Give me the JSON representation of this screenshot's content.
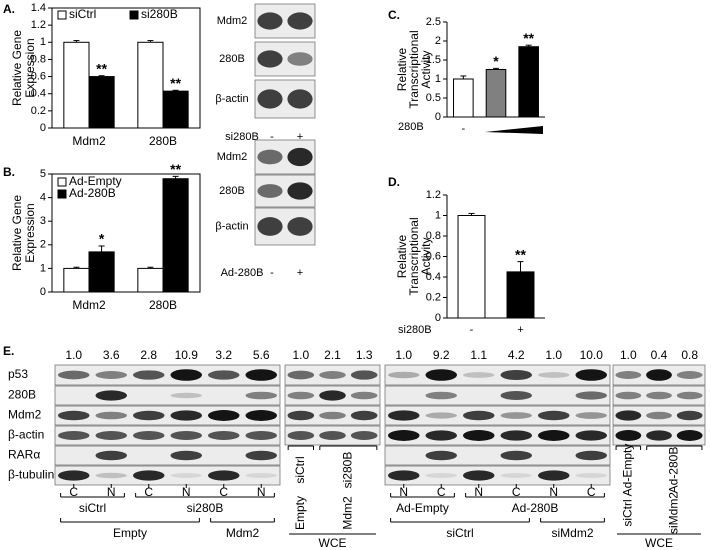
{
  "chart_data": [
    {
      "type": "bar",
      "label": "A.",
      "ylabel": [
        "Relative Gene",
        "Expression"
      ],
      "categories": [
        "Mdm2",
        "280B"
      ],
      "series": [
        {
          "name": "siCtrl",
          "color": "#ffffff",
          "values": [
            1,
            1
          ],
          "errors": [
            0.02,
            0.02
          ],
          "marks": [
            null,
            null
          ]
        },
        {
          "name": "si280B",
          "color": "#000000",
          "values": [
            0.6,
            0.43
          ],
          "errors": [
            0.01,
            0.01
          ],
          "marks": [
            "**",
            "**"
          ]
        }
      ],
      "ylim": [
        0,
        1.4
      ],
      "yticks": [
        0,
        0.2,
        0.4,
        0.6,
        0.8,
        1,
        1.2,
        1.4
      ]
    },
    {
      "type": "bar",
      "label": "B.",
      "ylabel": [
        "Relative Gene",
        "Expression"
      ],
      "categories": [
        "Mdm2",
        "280B"
      ],
      "series": [
        {
          "name": "Ad-Empty",
          "color": "#ffffff",
          "values": [
            1,
            1
          ],
          "errors": [
            0.05,
            0.05
          ],
          "marks": [
            null,
            null
          ]
        },
        {
          "name": "Ad-280B",
          "color": "#000000",
          "values": [
            1.7,
            4.8
          ],
          "errors": [
            0.25,
            0.1
          ],
          "marks": [
            "*",
            "**"
          ]
        }
      ],
      "ylim": [
        0,
        5
      ],
      "yticks": [
        0,
        1,
        2,
        3,
        4,
        5
      ]
    },
    {
      "type": "bar",
      "label": "C.",
      "ylabel": [
        "Relative",
        "Transcriptional",
        "Activity"
      ],
      "xlabel": "280B",
      "categories": [
        "-",
        null,
        null
      ],
      "series": [
        {
          "colors": [
            "#ffffff",
            "#808080",
            "#000000"
          ],
          "values": [
            1,
            1.25,
            1.85
          ],
          "errors": [
            0.08,
            0.03,
            0.04
          ],
          "marks": [
            null,
            "*",
            "**"
          ]
        }
      ],
      "ylim": [
        0,
        2.5
      ],
      "yticks": [
        0,
        0.5,
        1,
        1.5,
        2,
        2.5
      ]
    },
    {
      "type": "bar",
      "label": "D.",
      "ylabel": [
        "Relative",
        "Transcriptional",
        "Activity"
      ],
      "xlabel": "si280B",
      "categories": [
        "-",
        "+"
      ],
      "series": [
        {
          "colors": [
            "#ffffff",
            "#000000"
          ],
          "values": [
            1,
            0.45
          ],
          "errors": [
            0.02,
            0.1
          ],
          "marks": [
            null,
            "**"
          ]
        }
      ],
      "ylim": [
        0,
        1.2
      ],
      "yticks": [
        0,
        0.2,
        0.4,
        0.6,
        0.8,
        1,
        1.2
      ]
    }
  ],
  "blots": {
    "A": {
      "rows": [
        "Mdm2",
        "280B",
        "β-actin"
      ],
      "condition": "si280B",
      "lanes": [
        "-",
        "+"
      ]
    },
    "B": {
      "rows": [
        "Mdm2",
        "280B",
        "β-actin"
      ],
      "condition": "Ad-280B",
      "lanes": [
        "-",
        "+"
      ]
    },
    "E": {
      "label": "E.",
      "rows": [
        "p53",
        "280B",
        "Mdm2",
        "β-actin",
        "RARα",
        "β-tubulin"
      ],
      "left": {
        "quant": [
          "1.0",
          "3.6",
          "2.8",
          "10.9",
          "3.2",
          "5.6"
        ],
        "lanes": [
          "C",
          "N",
          "C",
          "N",
          "C",
          "N"
        ],
        "groups": [
          [
            "siCtrl",
            "si280B"
          ],
          [
            "Empty",
            "Mdm2"
          ]
        ],
        "wce_quant": [
          "1.0",
          "2.1",
          "1.3"
        ],
        "wce_groups": [
          [
            "siCtrl",
            "si280B"
          ],
          [
            "Empty",
            "Mdm2"
          ]
        ],
        "wce": "WCE"
      },
      "right": {
        "quant": [
          "1.0",
          "9.2",
          "1.1",
          "4.2",
          "1.0",
          "10.0"
        ],
        "lanes": [
          "N",
          "C",
          "N",
          "C",
          "N",
          "C"
        ],
        "groups": [
          [
            "Ad-Empty",
            "Ad-280B"
          ],
          [
            "siCtrl",
            "siMdm2"
          ]
        ],
        "wce_quant": [
          "1.0",
          "0.4",
          "0.8"
        ],
        "wce_groups": [
          [
            "Ad-Empty",
            "Ad-280B"
          ],
          [
            "siCtrl",
            "siMdm2"
          ]
        ],
        "wce": "WCE"
      }
    }
  }
}
